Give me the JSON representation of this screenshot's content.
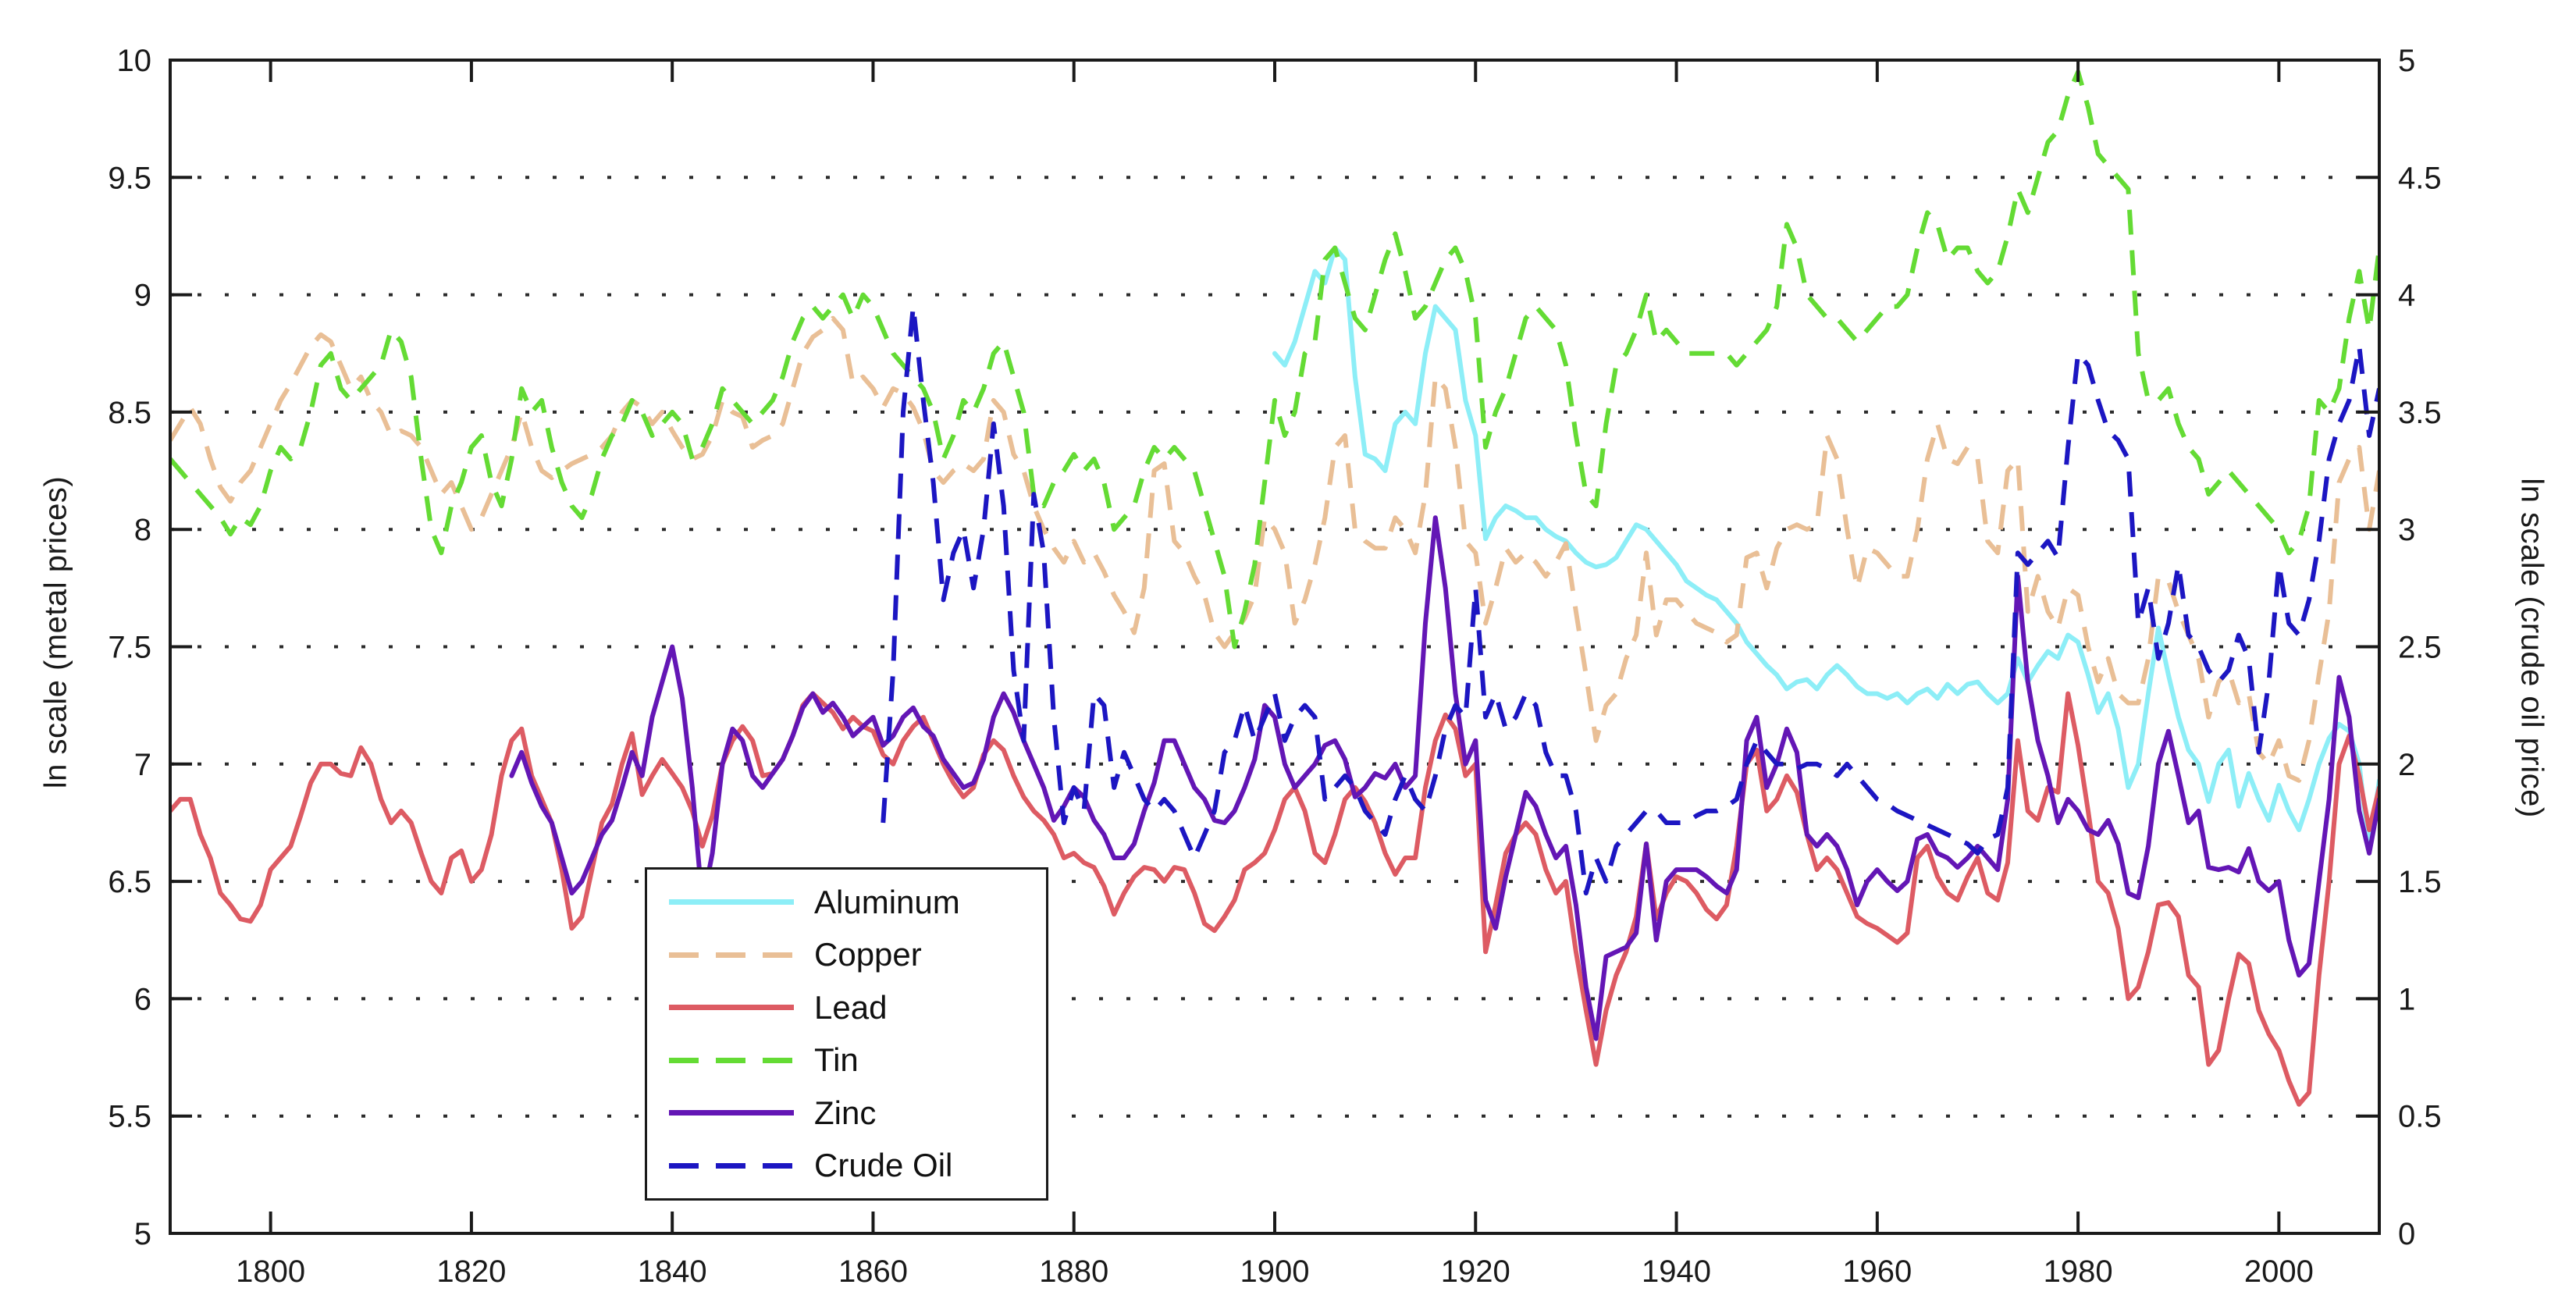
{
  "figure": {
    "background": "#ffffff",
    "axis_color": "#1a1a1a",
    "grid_color": "#2b2b2b"
  },
  "chart_data": {
    "type": "line",
    "title": "",
    "grid": "horizontal-dotted",
    "x_axis": {
      "label": "",
      "range": [
        1790,
        2010
      ],
      "ticks": [
        1800,
        1820,
        1840,
        1860,
        1880,
        1900,
        1920,
        1940,
        1960,
        1980,
        2000
      ]
    },
    "y_axis_left": {
      "label": "ln scale (metal prices)",
      "range": [
        5,
        10
      ],
      "ticks": [
        5,
        5.5,
        6,
        6.5,
        7,
        7.5,
        8,
        8.5,
        9,
        9.5,
        10
      ],
      "gridlines": [
        5.5,
        6,
        6.5,
        7,
        7.5,
        8,
        8.5,
        9,
        9.5
      ]
    },
    "y_axis_right": {
      "label": "ln scale (crude oil price)",
      "range": [
        0,
        5
      ],
      "ticks": [
        0,
        0.5,
        1,
        1.5,
        2,
        2.5,
        3,
        3.5,
        4,
        4.5,
        5
      ]
    },
    "legend": {
      "position": "inside-lower-left",
      "order": [
        "Aluminum",
        "Copper",
        "Lead",
        "Tin",
        "Zinc",
        "Crude Oil"
      ]
    },
    "series": [
      {
        "name": "Aluminum",
        "color": "#8deef7",
        "style": "solid",
        "axis": "left",
        "start_year": 1900,
        "step": 1,
        "values": [
          8.75,
          8.7,
          8.8,
          8.95,
          9.1,
          9.05,
          9.2,
          9.15,
          8.65,
          8.32,
          8.3,
          8.25,
          8.45,
          8.5,
          8.45,
          8.75,
          8.95,
          8.9,
          8.85,
          8.55,
          8.4,
          7.96,
          8.05,
          8.1,
          8.08,
          8.05,
          8.05,
          8.0,
          7.97,
          7.95,
          7.9,
          7.86,
          7.84,
          7.85,
          7.88,
          7.95,
          8.02,
          8.0,
          7.95,
          7.9,
          7.85,
          7.78,
          7.75,
          7.72,
          7.7,
          7.65,
          7.6,
          7.52,
          7.47,
          7.42,
          7.38,
          7.32,
          7.35,
          7.36,
          7.32,
          7.38,
          7.42,
          7.38,
          7.33,
          7.3,
          7.3,
          7.28,
          7.3,
          7.26,
          7.3,
          7.32,
          7.28,
          7.34,
          7.3,
          7.34,
          7.35,
          7.3,
          7.26,
          7.3,
          7.45,
          7.35,
          7.42,
          7.48,
          7.45,
          7.55,
          7.52,
          7.38,
          7.22,
          7.3,
          7.15,
          6.9,
          7.0,
          7.3,
          7.58,
          7.38,
          7.2,
          7.06,
          7.0,
          6.84,
          7.0,
          7.06,
          6.82,
          6.96,
          6.85,
          6.76,
          6.91,
          6.8,
          6.72,
          6.85,
          7.0,
          7.11,
          7.17,
          7.14,
          7.0,
          6.63,
          6.93
        ]
      },
      {
        "name": "Copper",
        "color": "#e9bf96",
        "style": "dashed",
        "axis": "left",
        "start_year": 1790,
        "step": 1,
        "values": [
          8.38,
          8.45,
          8.52,
          8.45,
          8.3,
          8.18,
          8.12,
          8.2,
          8.25,
          8.35,
          8.45,
          8.55,
          8.62,
          8.7,
          8.78,
          8.83,
          8.8,
          8.7,
          8.6,
          8.65,
          8.55,
          8.5,
          8.4,
          8.42,
          8.4,
          8.35,
          8.25,
          8.15,
          8.2,
          8.1,
          8.0,
          8.05,
          8.15,
          8.25,
          8.35,
          8.5,
          8.35,
          8.25,
          8.22,
          8.25,
          8.28,
          8.3,
          8.32,
          8.35,
          8.4,
          8.5,
          8.55,
          8.52,
          8.45,
          8.5,
          8.42,
          8.35,
          8.3,
          8.32,
          8.4,
          8.55,
          8.5,
          8.48,
          8.35,
          8.38,
          8.4,
          8.45,
          8.6,
          8.75,
          8.82,
          8.85,
          8.9,
          8.85,
          8.62,
          8.65,
          8.6,
          8.52,
          8.6,
          8.58,
          8.52,
          8.42,
          8.25,
          8.2,
          8.25,
          8.28,
          8.25,
          8.3,
          8.55,
          8.5,
          8.32,
          8.25,
          8.1,
          8.0,
          7.92,
          7.86,
          7.95,
          7.86,
          7.9,
          7.82,
          7.72,
          7.65,
          7.56,
          7.75,
          8.25,
          8.28,
          7.95,
          7.9,
          7.8,
          7.72,
          7.56,
          7.5,
          7.56,
          7.62,
          7.72,
          8.05,
          8.0,
          7.9,
          7.6,
          7.7,
          7.85,
          8.05,
          8.35,
          8.4,
          8.0,
          7.95,
          7.92,
          7.92,
          8.05,
          8.0,
          7.9,
          8.15,
          8.65,
          8.6,
          8.35,
          7.95,
          7.9,
          7.6,
          7.75,
          7.92,
          7.86,
          7.9,
          7.86,
          7.8,
          7.86,
          7.94,
          7.65,
          7.38,
          7.1,
          7.25,
          7.3,
          7.45,
          7.55,
          7.9,
          7.55,
          7.7,
          7.7,
          7.65,
          7.6,
          7.58,
          7.56,
          7.52,
          7.55,
          7.88,
          7.9,
          7.75,
          7.92,
          8.0,
          8.02,
          8.0,
          8.02,
          8.4,
          8.3,
          8.0,
          7.75,
          7.92,
          7.9,
          7.85,
          7.8,
          7.8,
          8.0,
          8.3,
          8.45,
          8.3,
          8.28,
          8.35,
          8.3,
          7.95,
          7.9,
          8.25,
          8.3,
          7.65,
          7.8,
          7.65,
          7.58,
          7.75,
          7.72,
          7.5,
          7.35,
          7.45,
          7.3,
          7.26,
          7.26,
          7.45,
          7.8,
          7.78,
          7.65,
          7.55,
          7.45,
          7.2,
          7.35,
          7.4,
          7.26,
          7.3,
          7.05,
          7.0,
          7.1,
          6.95,
          6.93,
          7.1,
          7.38,
          7.65,
          8.2,
          8.3,
          8.35,
          8.0,
          8.25
        ]
      },
      {
        "name": "Lead",
        "color": "#dd5b63",
        "style": "solid",
        "axis": "left",
        "start_year": 1790,
        "step": 1,
        "values": [
          6.8,
          6.85,
          6.85,
          6.7,
          6.6,
          6.45,
          6.4,
          6.34,
          6.33,
          6.4,
          6.55,
          6.6,
          6.65,
          6.78,
          6.92,
          7.0,
          7.0,
          6.96,
          6.95,
          7.07,
          7.0,
          6.85,
          6.75,
          6.8,
          6.75,
          6.62,
          6.5,
          6.45,
          6.6,
          6.63,
          6.5,
          6.55,
          6.7,
          6.95,
          7.1,
          7.15,
          6.95,
          6.85,
          6.75,
          6.55,
          6.3,
          6.35,
          6.55,
          6.75,
          6.83,
          7.0,
          7.13,
          6.87,
          6.95,
          7.02,
          6.96,
          6.9,
          6.8,
          6.65,
          6.78,
          7.0,
          7.1,
          7.16,
          7.1,
          6.95,
          6.96,
          7.02,
          7.12,
          7.25,
          7.3,
          7.26,
          7.22,
          7.15,
          7.2,
          7.16,
          7.14,
          7.04,
          7.0,
          7.1,
          7.16,
          7.2,
          7.1,
          7.0,
          6.92,
          6.86,
          6.9,
          7.04,
          7.1,
          7.06,
          6.95,
          6.86,
          6.8,
          6.76,
          6.7,
          6.6,
          6.62,
          6.58,
          6.56,
          6.48,
          6.36,
          6.45,
          6.52,
          6.56,
          6.55,
          6.5,
          6.56,
          6.55,
          6.45,
          6.32,
          6.29,
          6.35,
          6.42,
          6.55,
          6.58,
          6.62,
          6.72,
          6.85,
          6.9,
          6.8,
          6.62,
          6.58,
          6.7,
          6.85,
          6.9,
          6.84,
          6.75,
          6.62,
          6.53,
          6.6,
          6.6,
          6.9,
          7.1,
          7.21,
          7.15,
          6.95,
          7.0,
          6.2,
          6.4,
          6.62,
          6.7,
          6.75,
          6.7,
          6.55,
          6.45,
          6.5,
          6.2,
          5.95,
          5.72,
          5.95,
          6.1,
          6.2,
          6.35,
          6.66,
          6.34,
          6.45,
          6.52,
          6.5,
          6.45,
          6.38,
          6.34,
          6.4,
          6.65,
          7.0,
          7.06,
          6.8,
          6.85,
          6.95,
          6.88,
          6.7,
          6.55,
          6.6,
          6.55,
          6.45,
          6.35,
          6.32,
          6.3,
          6.27,
          6.24,
          6.28,
          6.6,
          6.65,
          6.52,
          6.45,
          6.42,
          6.52,
          6.6,
          6.45,
          6.42,
          6.58,
          7.1,
          6.8,
          6.76,
          6.9,
          6.88,
          7.3,
          7.08,
          6.8,
          6.5,
          6.45,
          6.3,
          6.0,
          6.05,
          6.2,
          6.4,
          6.41,
          6.35,
          6.1,
          6.05,
          5.72,
          5.78,
          6.0,
          6.19,
          6.15,
          5.95,
          5.85,
          5.78,
          5.65,
          5.55,
          5.6,
          6.1,
          6.5,
          7.0,
          7.12,
          6.95,
          6.72,
          6.9
        ]
      },
      {
        "name": "Tin",
        "color": "#64db34",
        "style": "dashed",
        "axis": "left",
        "start_year": 1790,
        "step": 1,
        "values": [
          8.3,
          8.25,
          8.2,
          8.15,
          8.1,
          8.05,
          7.98,
          8.05,
          8.02,
          8.1,
          8.25,
          8.35,
          8.3,
          8.35,
          8.5,
          8.7,
          8.75,
          8.6,
          8.55,
          8.6,
          8.65,
          8.7,
          8.85,
          8.8,
          8.65,
          8.3,
          8.0,
          7.9,
          8.1,
          8.2,
          8.35,
          8.4,
          8.2,
          8.1,
          8.3,
          8.6,
          8.5,
          8.55,
          8.35,
          8.2,
          8.1,
          8.05,
          8.15,
          8.3,
          8.4,
          8.45,
          8.55,
          8.5,
          8.4,
          8.45,
          8.5,
          8.45,
          8.3,
          8.35,
          8.45,
          8.6,
          8.55,
          8.5,
          8.45,
          8.5,
          8.55,
          8.65,
          8.8,
          8.9,
          8.95,
          8.9,
          8.95,
          9.0,
          8.9,
          9.0,
          8.95,
          8.85,
          8.75,
          8.7,
          8.65,
          8.6,
          8.5,
          8.3,
          8.4,
          8.55,
          8.5,
          8.6,
          8.75,
          8.8,
          8.65,
          8.5,
          8.15,
          8.1,
          8.2,
          8.25,
          8.32,
          8.25,
          8.3,
          8.2,
          8.0,
          8.05,
          8.1,
          8.25,
          8.35,
          8.3,
          8.35,
          8.3,
          8.25,
          8.1,
          7.95,
          7.8,
          7.5,
          7.65,
          7.85,
          8.2,
          8.55,
          8.4,
          8.5,
          8.75,
          8.8,
          9.15,
          9.2,
          9.05,
          8.9,
          8.85,
          9.0,
          9.15,
          9.26,
          9.1,
          8.9,
          8.95,
          9.05,
          9.15,
          9.2,
          9.1,
          8.9,
          8.35,
          8.5,
          8.6,
          8.75,
          8.9,
          8.95,
          8.9,
          8.85,
          8.7,
          8.4,
          8.15,
          8.1,
          8.45,
          8.7,
          8.75,
          8.85,
          9.0,
          8.8,
          8.85,
          8.8,
          8.75,
          8.75,
          8.75,
          8.75,
          8.75,
          8.7,
          8.75,
          8.8,
          8.85,
          8.95,
          9.3,
          9.2,
          9.0,
          8.95,
          8.9,
          8.9,
          8.85,
          8.8,
          8.85,
          8.9,
          8.95,
          8.95,
          9.0,
          9.2,
          9.35,
          9.3,
          9.15,
          9.2,
          9.2,
          9.1,
          9.05,
          9.1,
          9.25,
          9.45,
          9.35,
          9.5,
          9.65,
          9.7,
          9.85,
          9.95,
          9.8,
          9.6,
          9.55,
          9.5,
          9.45,
          8.75,
          8.55,
          8.55,
          8.6,
          8.45,
          8.35,
          8.3,
          8.15,
          8.2,
          8.25,
          8.2,
          8.15,
          8.1,
          8.05,
          8.0,
          7.9,
          7.95,
          8.1,
          8.55,
          8.5,
          8.6,
          8.9,
          9.1,
          8.85,
          9.2
        ]
      },
      {
        "name": "Zinc",
        "color": "#6316b5",
        "style": "solid",
        "axis": "left",
        "start_year": 1824,
        "step": 1,
        "values": [
          6.95,
          7.05,
          6.92,
          6.82,
          6.75,
          6.6,
          6.45,
          6.5,
          6.6,
          6.7,
          6.76,
          6.9,
          7.05,
          6.95,
          7.2,
          7.35,
          7.5,
          7.28,
          6.9,
          6.4,
          6.62,
          7.0,
          7.15,
          7.1,
          6.95,
          6.9,
          6.96,
          7.02,
          7.12,
          7.24,
          7.3,
          7.22,
          7.26,
          7.2,
          7.12,
          7.16,
          7.2,
          7.08,
          7.12,
          7.2,
          7.24,
          7.16,
          7.12,
          7.02,
          6.96,
          6.9,
          6.92,
          7.02,
          7.2,
          7.3,
          7.22,
          7.1,
          7.0,
          6.9,
          6.76,
          6.82,
          6.9,
          6.86,
          6.76,
          6.7,
          6.6,
          6.6,
          6.66,
          6.8,
          6.92,
          7.1,
          7.1,
          7.0,
          6.9,
          6.85,
          6.76,
          6.75,
          6.8,
          6.9,
          7.02,
          7.25,
          7.2,
          7.0,
          6.9,
          6.95,
          7.0,
          7.08,
          7.1,
          7.02,
          6.86,
          6.9,
          6.96,
          6.94,
          7.0,
          6.9,
          6.95,
          7.6,
          8.05,
          7.75,
          7.3,
          7.0,
          7.1,
          6.42,
          6.3,
          6.52,
          6.7,
          6.88,
          6.82,
          6.7,
          6.6,
          6.65,
          6.4,
          6.05,
          5.83,
          6.18,
          6.2,
          6.22,
          6.28,
          6.66,
          6.25,
          6.5,
          6.55,
          6.55,
          6.55,
          6.52,
          6.48,
          6.45,
          6.55,
          7.1,
          7.2,
          6.9,
          7.0,
          7.15,
          7.05,
          6.7,
          6.65,
          6.7,
          6.65,
          6.55,
          6.4,
          6.5,
          6.55,
          6.5,
          6.46,
          6.5,
          6.68,
          6.7,
          6.62,
          6.6,
          6.56,
          6.6,
          6.65,
          6.6,
          6.55,
          6.85,
          7.8,
          7.35,
          7.1,
          6.95,
          6.75,
          6.85,
          6.8,
          6.72,
          6.7,
          6.76,
          6.66,
          6.45,
          6.43,
          6.65,
          7.0,
          7.14,
          6.95,
          6.75,
          6.8,
          6.56,
          6.55,
          6.56,
          6.54,
          6.64,
          6.5,
          6.46,
          6.5,
          6.25,
          6.1,
          6.15,
          6.5,
          6.85,
          7.37,
          7.2,
          6.8,
          6.62,
          6.85
        ]
      },
      {
        "name": "Crude Oil",
        "color": "#1c16c2",
        "style": "dashed",
        "axis": "right",
        "start_year": 1861,
        "step": 1,
        "values": [
          1.75,
          2.4,
          3.5,
          3.95,
          3.55,
          3.2,
          2.7,
          2.9,
          3.0,
          2.75,
          3.0,
          3.45,
          3.1,
          2.4,
          2.1,
          3.15,
          2.9,
          2.2,
          1.75,
          1.9,
          1.8,
          2.3,
          2.25,
          1.9,
          2.05,
          1.95,
          1.85,
          1.8,
          1.85,
          1.8,
          1.7,
          1.6,
          1.7,
          1.8,
          2.05,
          2.1,
          2.25,
          2.1,
          2.2,
          2.3,
          2.1,
          2.2,
          2.25,
          2.2,
          1.85,
          1.9,
          1.95,
          1.9,
          1.8,
          1.75,
          1.7,
          1.85,
          1.95,
          1.85,
          1.8,
          1.95,
          2.15,
          2.25,
          2.2,
          2.75,
          2.2,
          2.3,
          2.15,
          2.2,
          2.3,
          2.25,
          2.05,
          1.95,
          1.95,
          1.8,
          1.45,
          1.6,
          1.5,
          1.65,
          1.7,
          1.75,
          1.8,
          1.8,
          1.75,
          1.75,
          1.75,
          1.78,
          1.8,
          1.8,
          1.82,
          1.85,
          2.0,
          2.1,
          2.05,
          2.0,
          2.0,
          1.98,
          2.0,
          2.0,
          1.98,
          1.95,
          2.0,
          1.95,
          1.9,
          1.85,
          1.83,
          1.8,
          1.78,
          1.76,
          1.74,
          1.72,
          1.7,
          1.68,
          1.66,
          1.62,
          1.68,
          1.7,
          1.9,
          2.9,
          2.85,
          2.9,
          2.95,
          2.88,
          3.35,
          3.75,
          3.7,
          3.55,
          3.42,
          3.38,
          3.3,
          2.6,
          2.75,
          2.45,
          2.6,
          2.85,
          2.55,
          2.5,
          2.4,
          2.35,
          2.4,
          2.55,
          2.45,
          2.05,
          2.35,
          2.85,
          2.6,
          2.55,
          2.7,
          2.95,
          3.3,
          3.45,
          3.55,
          3.78,
          3.4,
          3.6
        ]
      }
    ]
  }
}
